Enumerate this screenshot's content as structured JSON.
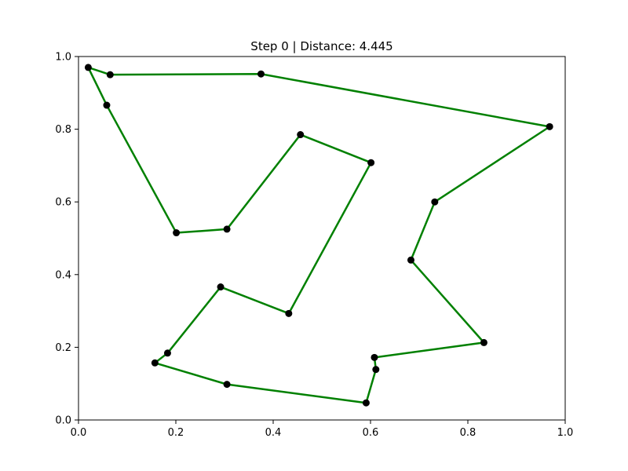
{
  "chart_data": {
    "type": "line",
    "title": "Step 0 | Distance: 4.445",
    "xlabel": "",
    "ylabel": "",
    "xlim": [
      0.0,
      1.0
    ],
    "ylim": [
      0.0,
      1.0
    ],
    "x_ticks": [
      "0.0",
      "0.2",
      "0.4",
      "0.6",
      "0.8",
      "1.0"
    ],
    "y_ticks": [
      "0.0",
      "0.2",
      "0.4",
      "0.6",
      "0.8",
      "1.0"
    ],
    "grid": false,
    "line_color": "#008000",
    "point_color": "#000000",
    "series": [
      {
        "closed": true,
        "points": [
          [
            0.02,
            0.97
          ],
          [
            0.065,
            0.95
          ],
          [
            0.375,
            0.952
          ],
          [
            0.968,
            0.807
          ],
          [
            0.732,
            0.6
          ],
          [
            0.683,
            0.44
          ],
          [
            0.833,
            0.213
          ],
          [
            0.608,
            0.172
          ],
          [
            0.611,
            0.139
          ],
          [
            0.591,
            0.047
          ],
          [
            0.305,
            0.098
          ],
          [
            0.157,
            0.157
          ],
          [
            0.183,
            0.184
          ],
          [
            0.292,
            0.366
          ],
          [
            0.432,
            0.293
          ],
          [
            0.601,
            0.708
          ],
          [
            0.456,
            0.785
          ],
          [
            0.305,
            0.525
          ],
          [
            0.201,
            0.515
          ],
          [
            0.058,
            0.866
          ]
        ]
      }
    ]
  }
}
